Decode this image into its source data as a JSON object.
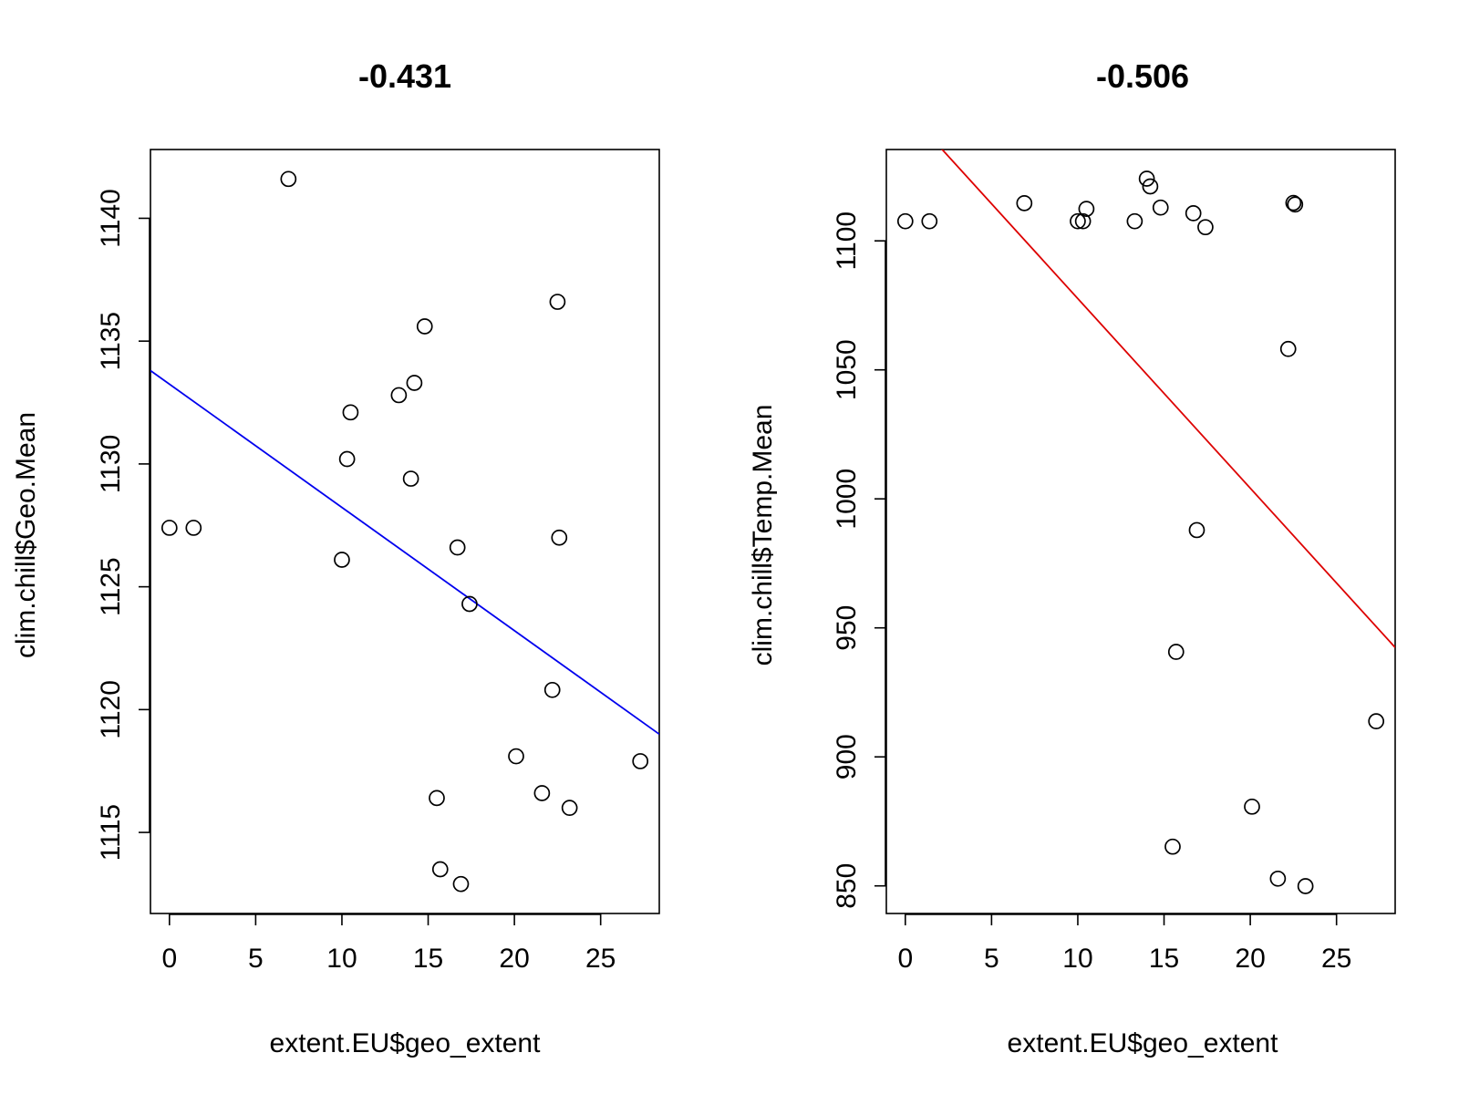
{
  "chart_data": [
    {
      "type": "scatter",
      "title": "-0.431",
      "xlabel": "extent.EU$geo_extent",
      "ylabel": "clim.chill$Geo.Mean",
      "xlim": [
        -1.1,
        28.4
      ],
      "ylim": [
        1111.7,
        1142.8
      ],
      "xticks": [
        0,
        5,
        10,
        15,
        20,
        25
      ],
      "yticks": [
        1115,
        1120,
        1125,
        1130,
        1135,
        1140
      ],
      "grid": false,
      "legend": "none",
      "marker": "open-circle",
      "x": [
        0.0,
        1.4,
        6.9,
        10.0,
        10.3,
        10.5,
        13.3,
        14.0,
        14.2,
        14.8,
        15.5,
        15.7,
        16.7,
        16.9,
        17.4,
        20.1,
        21.6,
        22.2,
        22.5,
        22.6,
        23.2,
        27.3
      ],
      "y": [
        1127.4,
        1127.4,
        1141.6,
        1126.1,
        1130.2,
        1132.1,
        1132.8,
        1129.4,
        1133.3,
        1135.6,
        1116.4,
        1113.5,
        1126.6,
        1112.9,
        1124.3,
        1118.1,
        1116.6,
        1120.8,
        1136.6,
        1127.0,
        1116.0,
        1117.9
      ],
      "regression_line": {
        "x": [
          -1.1,
          28.4
        ],
        "y": [
          1133.8,
          1119.0
        ],
        "color": "#0000ee"
      }
    },
    {
      "type": "scatter",
      "title": "-0.506",
      "xlabel": "extent.EU$geo_extent",
      "ylabel": "clim.chill$Temp.Mean",
      "xlim": [
        -1.1,
        28.4
      ],
      "ylim": [
        839.3,
        1135.4
      ],
      "xticks": [
        0,
        5,
        10,
        15,
        20,
        25
      ],
      "yticks": [
        850,
        900,
        950,
        1000,
        1050,
        1100
      ],
      "grid": false,
      "legend": "none",
      "marker": "open-circle",
      "x": [
        0.0,
        1.4,
        6.9,
        10.0,
        10.3,
        10.5,
        13.3,
        14.0,
        14.2,
        14.8,
        15.5,
        15.7,
        16.7,
        16.9,
        17.4,
        20.1,
        21.6,
        22.2,
        22.5,
        22.6,
        23.2,
        27.3
      ],
      "y": [
        1107.6,
        1107.6,
        1114.6,
        1107.6,
        1107.6,
        1112.4,
        1107.6,
        1124.1,
        1121.1,
        1112.9,
        865.2,
        940.7,
        1110.7,
        987.9,
        1105.3,
        880.7,
        852.8,
        1058.1,
        1114.7,
        1114.1,
        849.9,
        913.8
      ],
      "regression_line": {
        "x": [
          -1.1,
          28.4
        ],
        "y": [
          1159.2,
          942.4
        ],
        "color": "#dd0000"
      }
    }
  ]
}
